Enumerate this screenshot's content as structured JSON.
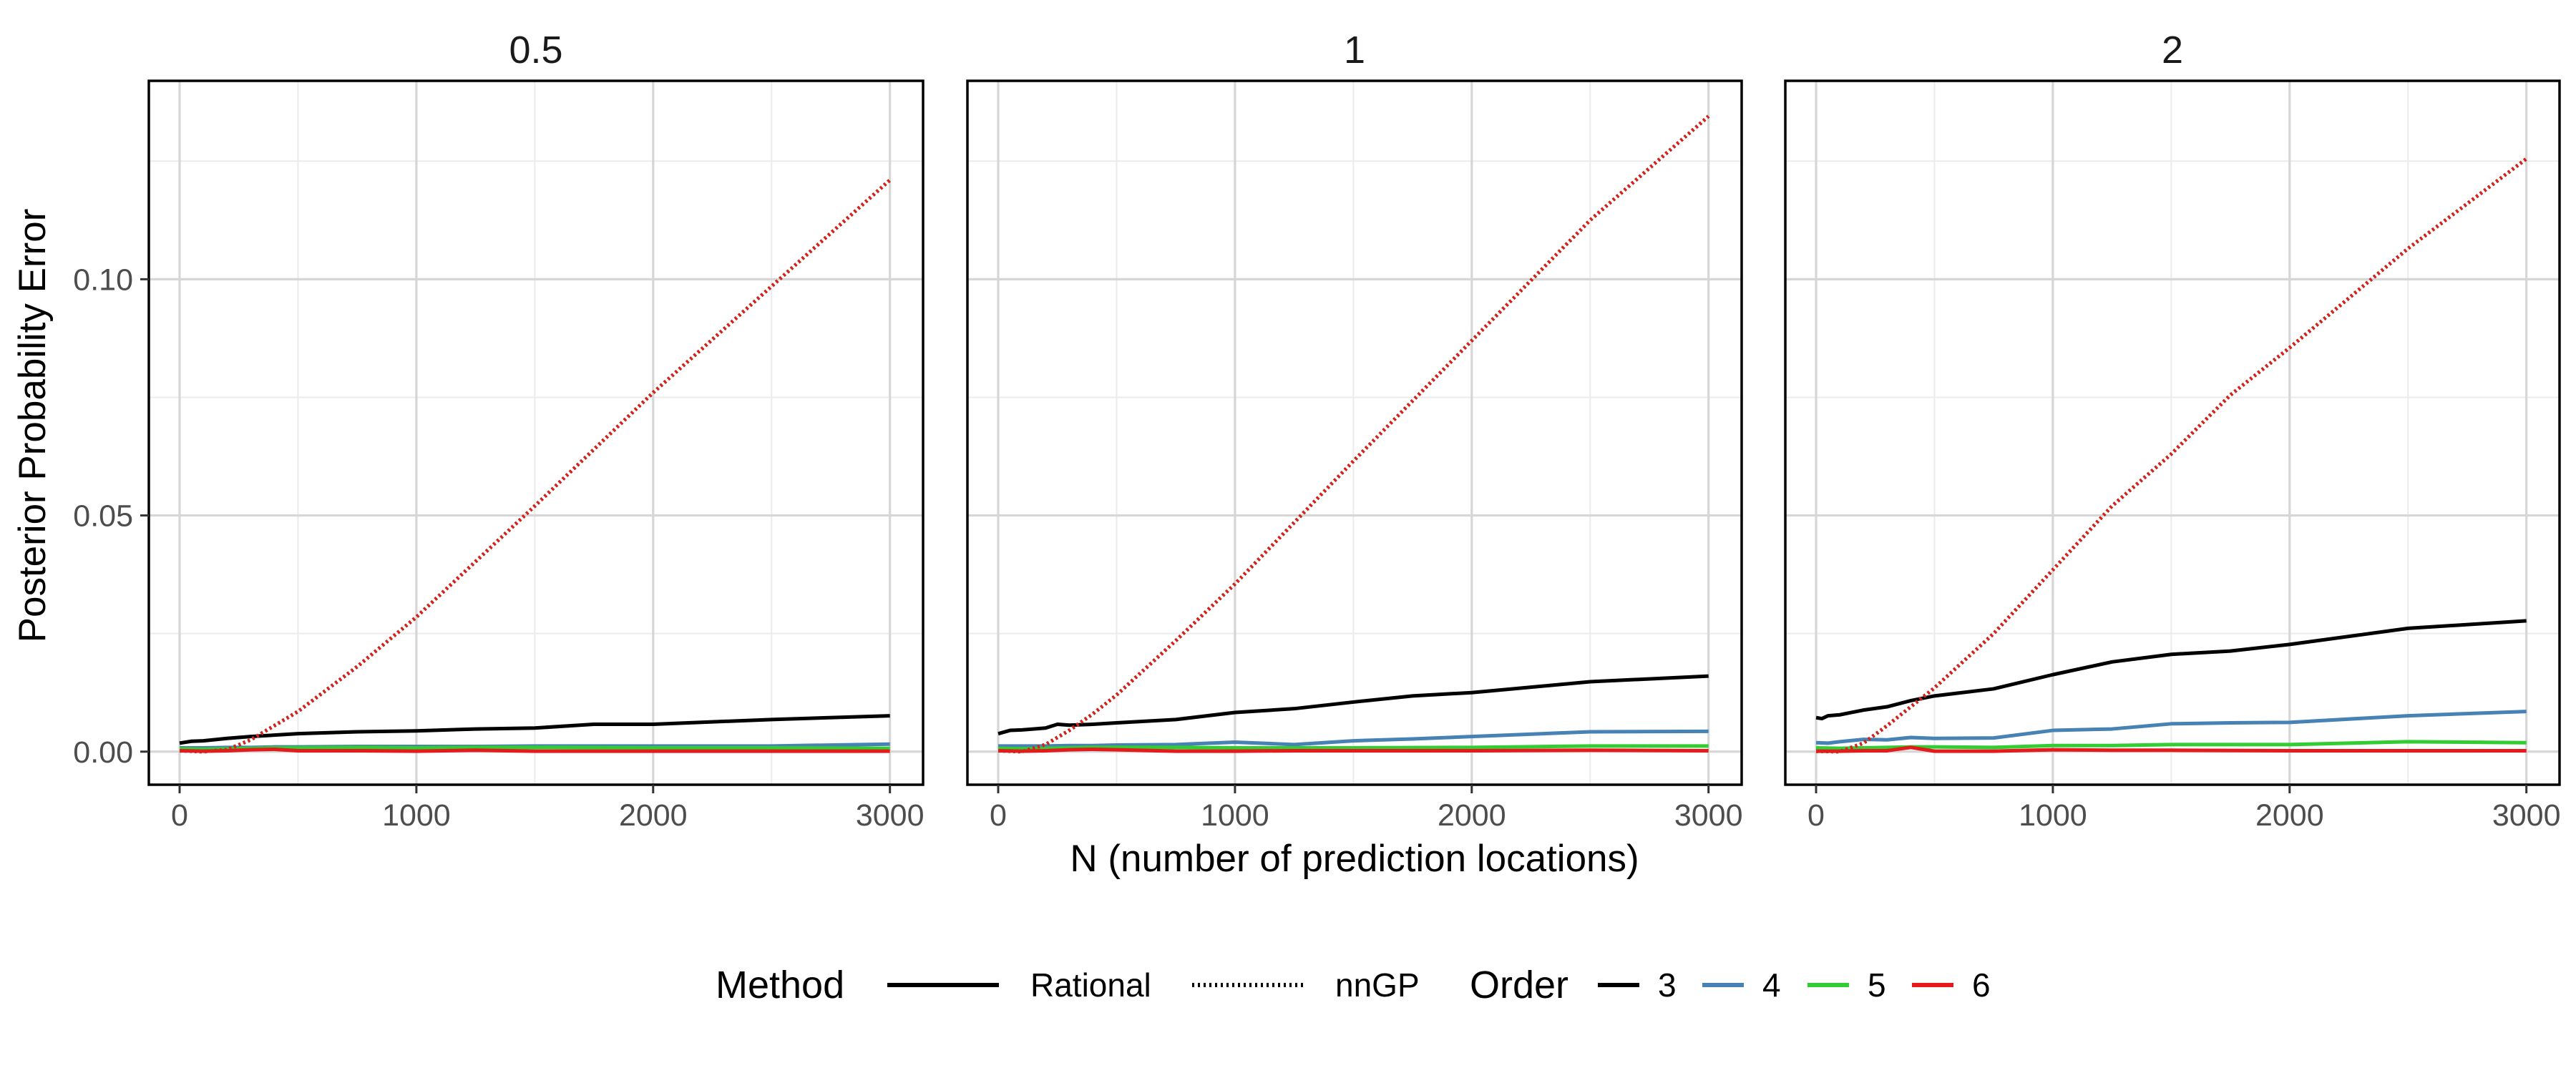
{
  "chart_data": {
    "type": "line",
    "xlabel": "N (number of prediction locations)",
    "ylabel": "Posterior Probability Error",
    "xlim": [
      -130,
      3140
    ],
    "ylim": [
      -0.007,
      0.142
    ],
    "x_ticks": [
      0,
      1000,
      2000,
      3000
    ],
    "x_tick_labels": [
      "0",
      "1000",
      "2000",
      "3000"
    ],
    "y_ticks": [
      0,
      0.05,
      0.1
    ],
    "y_tick_labels": [
      "0.00",
      "0.05",
      "0.10"
    ],
    "y_minor_ticks": [
      0.025,
      0.075,
      0.125
    ],
    "x_minor_ticks": [
      500,
      1500,
      2500
    ],
    "grid": true,
    "legend_position": "bottom",
    "legend": {
      "method_title": "Method",
      "method_entries": [
        {
          "label": "Rational",
          "linetype": "solid"
        },
        {
          "label": "nnGP",
          "linetype": "dotted"
        }
      ],
      "order_title": "Order",
      "order_entries": [
        {
          "label": "3",
          "color": "#000000"
        },
        {
          "label": "4",
          "color": "#4682B4"
        },
        {
          "label": "5",
          "color": "#32CD32"
        },
        {
          "label": "6",
          "color": "#E41A1C"
        }
      ]
    },
    "panels": [
      {
        "title": "0.5",
        "series": [
          {
            "method": "Rational",
            "order": "3",
            "x": [
              0,
              50,
              100,
              200,
              300,
              400,
              500,
              750,
              1000,
              1250,
              1500,
              1750,
              2000,
              2500,
              3000
            ],
            "y": [
              0.0018,
              0.0022,
              0.0023,
              0.0028,
              0.0032,
              0.0035,
              0.0038,
              0.0042,
              0.0044,
              0.0048,
              0.005,
              0.0058,
              0.0058,
              0.0068,
              0.0076
            ]
          },
          {
            "method": "Rational",
            "order": "4",
            "x": [
              0,
              100,
              200,
              300,
              400,
              500,
              750,
              1000,
              1250,
              1500,
              1750,
              2000,
              2500,
              3000
            ],
            "y": [
              0.0008,
              0.0008,
              0.0009,
              0.0009,
              0.001,
              0.001,
              0.0011,
              0.0011,
              0.0011,
              0.0012,
              0.0012,
              0.0012,
              0.0012,
              0.0016
            ]
          },
          {
            "method": "Rational",
            "order": "5",
            "x": [
              0,
              100,
              200,
              300,
              400,
              500,
              750,
              1000,
              1250,
              1500,
              2000,
              2500,
              3000
            ],
            "y": [
              0.0006,
              0.0005,
              0.0006,
              0.0007,
              0.0008,
              0.0008,
              0.0009,
              0.0008,
              0.0009,
              0.0009,
              0.0008,
              0.0008,
              0.0007
            ]
          },
          {
            "method": "Rational",
            "order": "6",
            "x": [
              0,
              100,
              200,
              300,
              400,
              500,
              750,
              1000,
              1250,
              1500,
              2000,
              2500,
              3000
            ],
            "y": [
              0.0002,
              0.0001,
              0.0002,
              0.0004,
              0.0005,
              0.0002,
              0.0002,
              0.0001,
              0.0003,
              0.0001,
              0.0001,
              0.0001,
              0.0001
            ]
          },
          {
            "method": "nnGP",
            "order": "3",
            "x": [
              0,
              100,
              200,
              300,
              400,
              500,
              750,
              1000,
              1500,
              2000,
              2500,
              3000
            ],
            "y": [
              0.0002,
              0.0,
              0.0004,
              0.0025,
              0.0055,
              0.0085,
              0.018,
              0.0285,
              0.052,
              0.076,
              0.0985,
              0.121
            ]
          },
          {
            "method": "nnGP",
            "order": "4",
            "x": [
              0,
              100,
              200,
              300,
              400,
              500,
              750,
              1000,
              1500,
              2000,
              2500,
              3000
            ],
            "y": [
              0.0002,
              0.0,
              0.0004,
              0.0025,
              0.0055,
              0.0085,
              0.018,
              0.0285,
              0.052,
              0.076,
              0.0985,
              0.121
            ]
          },
          {
            "method": "nnGP",
            "order": "5",
            "x": [
              0,
              100,
              200,
              300,
              400,
              500,
              750,
              1000,
              1500,
              2000,
              2500,
              3000
            ],
            "y": [
              0.0002,
              0.0,
              0.0004,
              0.0025,
              0.0055,
              0.0085,
              0.018,
              0.0285,
              0.052,
              0.076,
              0.0985,
              0.121
            ]
          },
          {
            "method": "nnGP",
            "order": "6",
            "x": [
              0,
              100,
              200,
              300,
              400,
              500,
              750,
              1000,
              1500,
              2000,
              2500,
              3000
            ],
            "y": [
              0.0002,
              0.0,
              0.0004,
              0.0025,
              0.0055,
              0.0085,
              0.018,
              0.0285,
              0.052,
              0.076,
              0.0985,
              0.121
            ]
          }
        ]
      },
      {
        "title": "1",
        "series": [
          {
            "method": "Rational",
            "order": "3",
            "x": [
              0,
              50,
              100,
              200,
              250,
              300,
              400,
              500,
              750,
              1000,
              1250,
              1500,
              1750,
              2000,
              2500,
              3000
            ],
            "y": [
              0.0038,
              0.0045,
              0.0046,
              0.005,
              0.0058,
              0.0056,
              0.0058,
              0.0061,
              0.0068,
              0.0083,
              0.0091,
              0.0105,
              0.0118,
              0.0125,
              0.0148,
              0.016
            ]
          },
          {
            "method": "Rational",
            "order": "4",
            "x": [
              0,
              100,
              200,
              300,
              400,
              500,
              750,
              1000,
              1250,
              1500,
              1750,
              2000,
              2500,
              3000
            ],
            "y": [
              0.0012,
              0.0012,
              0.0012,
              0.0013,
              0.0013,
              0.0014,
              0.0015,
              0.002,
              0.0015,
              0.0023,
              0.0027,
              0.0032,
              0.0042,
              0.0043
            ]
          },
          {
            "method": "Rational",
            "order": "5",
            "x": [
              0,
              100,
              200,
              300,
              400,
              500,
              750,
              1000,
              1250,
              1500,
              2000,
              2500,
              3000
            ],
            "y": [
              0.0007,
              0.0006,
              0.0007,
              0.0008,
              0.0009,
              0.0009,
              0.0009,
              0.0008,
              0.0008,
              0.0008,
              0.0009,
              0.0012,
              0.0012
            ]
          },
          {
            "method": "Rational",
            "order": "6",
            "x": [
              0,
              100,
              200,
              300,
              400,
              500,
              750,
              1000,
              1250,
              1500,
              2000,
              2500,
              3000
            ],
            "y": [
              0.0002,
              0.0001,
              0.0002,
              0.0004,
              0.0005,
              0.0004,
              0.0001,
              0.0001,
              0.0002,
              0.0002,
              0.0002,
              0.0003,
              0.0002
            ]
          },
          {
            "method": "nnGP",
            "order": "3",
            "x": [
              0,
              100,
              200,
              300,
              400,
              500,
              750,
              1000,
              1500,
              2000,
              2500,
              3000
            ],
            "y": [
              0.0002,
              0.0,
              0.0015,
              0.0045,
              0.008,
              0.012,
              0.0235,
              0.0355,
              0.0615,
              0.087,
              0.1125,
              0.1345
            ]
          },
          {
            "method": "nnGP",
            "order": "4",
            "x": [
              0,
              100,
              200,
              300,
              400,
              500,
              750,
              1000,
              1500,
              2000,
              2500,
              3000
            ],
            "y": [
              0.0002,
              0.0,
              0.0015,
              0.0045,
              0.008,
              0.012,
              0.0235,
              0.0355,
              0.0615,
              0.087,
              0.1125,
              0.1345
            ]
          },
          {
            "method": "nnGP",
            "order": "5",
            "x": [
              0,
              100,
              200,
              300,
              400,
              500,
              750,
              1000,
              1500,
              2000,
              2500,
              3000
            ],
            "y": [
              0.0002,
              0.0,
              0.0015,
              0.0045,
              0.008,
              0.012,
              0.0235,
              0.0355,
              0.0615,
              0.087,
              0.1125,
              0.1345
            ]
          },
          {
            "method": "nnGP",
            "order": "6",
            "x": [
              0,
              100,
              200,
              300,
              400,
              500,
              750,
              1000,
              1500,
              2000,
              2500,
              3000
            ],
            "y": [
              0.0002,
              0.0,
              0.0015,
              0.0045,
              0.008,
              0.012,
              0.0235,
              0.0355,
              0.0615,
              0.087,
              0.1125,
              0.1345
            ]
          }
        ]
      },
      {
        "title": "2",
        "series": [
          {
            "method": "Rational",
            "order": "3",
            "x": [
              0,
              25,
              50,
              100,
              150,
              200,
              300,
              400,
              500,
              750,
              1000,
              1250,
              1500,
              1750,
              2000,
              2500,
              3000
            ],
            "y": [
              0.0072,
              0.007,
              0.0076,
              0.0078,
              0.0083,
              0.0088,
              0.0095,
              0.0108,
              0.0118,
              0.0133,
              0.0163,
              0.019,
              0.0206,
              0.0213,
              0.0227,
              0.0261,
              0.0277
            ]
          },
          {
            "method": "Rational",
            "order": "4",
            "x": [
              0,
              50,
              100,
              200,
              300,
              400,
              500,
              750,
              1000,
              1250,
              1500,
              1750,
              2000,
              2500,
              3000
            ],
            "y": [
              0.0019,
              0.0018,
              0.0021,
              0.0026,
              0.0025,
              0.003,
              0.0028,
              0.0029,
              0.0045,
              0.0048,
              0.0059,
              0.0061,
              0.0062,
              0.0076,
              0.0085
            ]
          },
          {
            "method": "Rational",
            "order": "5",
            "x": [
              0,
              100,
              200,
              300,
              400,
              500,
              750,
              1000,
              1250,
              1500,
              2000,
              2500,
              3000
            ],
            "y": [
              0.0008,
              0.0007,
              0.0008,
              0.0009,
              0.001,
              0.001,
              0.0009,
              0.0013,
              0.0013,
              0.0015,
              0.0015,
              0.0021,
              0.0019
            ]
          },
          {
            "method": "Rational",
            "order": "6",
            "x": [
              0,
              100,
              200,
              300,
              400,
              500,
              750,
              1000,
              1250,
              1500,
              2000,
              2500,
              3000
            ],
            "y": [
              0.0001,
              0.0001,
              0.0002,
              0.0002,
              0.0009,
              0.0001,
              0.0001,
              0.0004,
              0.0003,
              0.0003,
              0.0002,
              0.0002,
              0.0002
            ]
          },
          {
            "method": "nnGP",
            "order": "3",
            "x": [
              0,
              100,
              200,
              300,
              400,
              500,
              750,
              1000,
              1250,
              1500,
              1750,
              2000,
              2500,
              3000
            ],
            "y": [
              0.0001,
              0.0,
              0.0018,
              0.0055,
              0.0095,
              0.0135,
              0.025,
              0.0385,
              0.052,
              0.063,
              0.0755,
              0.0855,
              0.1065,
              0.1255
            ]
          },
          {
            "method": "nnGP",
            "order": "4",
            "x": [
              0,
              100,
              200,
              300,
              400,
              500,
              750,
              1000,
              1250,
              1500,
              1750,
              2000,
              2500,
              3000
            ],
            "y": [
              0.0001,
              0.0,
              0.0018,
              0.0055,
              0.0095,
              0.0135,
              0.025,
              0.0385,
              0.052,
              0.063,
              0.0755,
              0.0855,
              0.1065,
              0.1255
            ]
          },
          {
            "method": "nnGP",
            "order": "5",
            "x": [
              0,
              100,
              200,
              300,
              400,
              500,
              750,
              1000,
              1250,
              1500,
              1750,
              2000,
              2500,
              3000
            ],
            "y": [
              0.0001,
              0.0,
              0.0018,
              0.0055,
              0.0095,
              0.0135,
              0.025,
              0.0385,
              0.052,
              0.063,
              0.0755,
              0.0855,
              0.1065,
              0.1255
            ]
          },
          {
            "method": "nnGP",
            "order": "6",
            "x": [
              0,
              100,
              200,
              300,
              400,
              500,
              750,
              1000,
              1250,
              1500,
              1750,
              2000,
              2500,
              3000
            ],
            "y": [
              0.0001,
              0.0,
              0.0018,
              0.0055,
              0.0095,
              0.0135,
              0.025,
              0.0385,
              0.052,
              0.063,
              0.0755,
              0.0855,
              0.1065,
              0.1255
            ]
          }
        ]
      }
    ]
  }
}
